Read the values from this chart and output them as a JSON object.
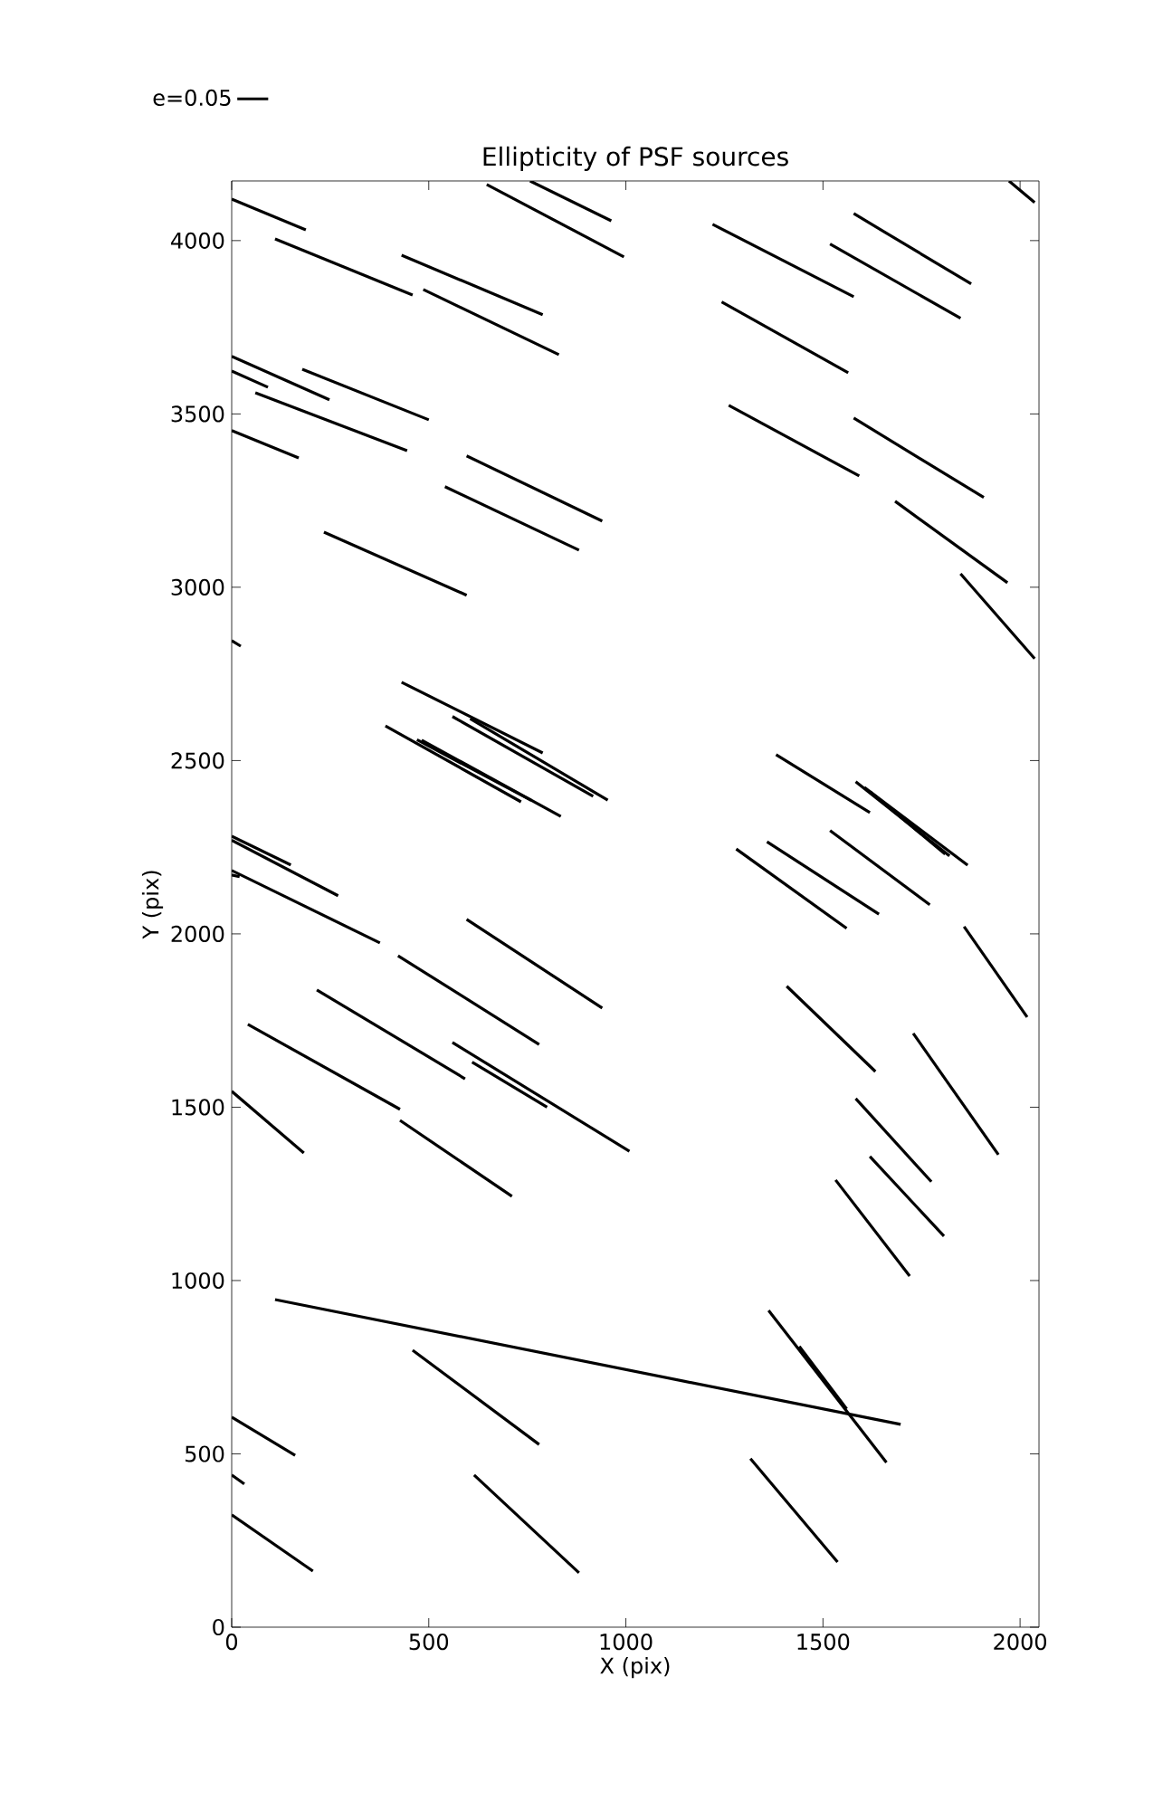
{
  "chart_data": {
    "type": "line",
    "title": "Ellipticity of PSF sources",
    "xlabel": "X (pix)",
    "ylabel": "Y (pix)",
    "xlim": [
      0,
      2048
    ],
    "ylim": [
      0,
      4172
    ],
    "xticks": [
      0,
      500,
      1000,
      1500,
      2000
    ],
    "yticks": [
      0,
      500,
      1000,
      1500,
      2000,
      2500,
      3000,
      3500,
      4000
    ],
    "legend": "top left",
    "marker": "none",
    "line_style": "solid",
    "series": [
      {
        "name": "e=0.05",
        "color": "#000000",
        "x": [
          0,
          188
        ],
        "values": [
          4120,
          4031
        ]
      },
      {
        "color": "#000000",
        "x": [
          110,
          459
        ],
        "values": [
          4005,
          3843
        ]
      },
      {
        "color": "#000000",
        "x": [
          431,
          789
        ],
        "values": [
          3958,
          3786
        ]
      },
      {
        "color": "#000000",
        "x": [
          486,
          830
        ],
        "values": [
          3859,
          3671
        ]
      },
      {
        "color": "#000000",
        "x": [
          647,
          995
        ],
        "values": [
          4162,
          3953
        ]
      },
      {
        "color": "#000000",
        "x": [
          757,
          963
        ],
        "values": [
          4172,
          4057
        ]
      },
      {
        "color": "#000000",
        "x": [
          1220,
          1578
        ],
        "values": [
          4047,
          3838
        ]
      },
      {
        "color": "#000000",
        "x": [
          1243,
          1564
        ],
        "values": [
          3823,
          3619
        ]
      },
      {
        "color": "#000000",
        "x": [
          1518,
          1849
        ],
        "values": [
          3990,
          3776
        ]
      },
      {
        "color": "#000000",
        "x": [
          1578,
          1876
        ],
        "values": [
          4078,
          3875
        ]
      },
      {
        "color": "#000000",
        "x": [
          1972,
          2037
        ],
        "values": [
          4172,
          4110
        ]
      },
      {
        "color": "#000000",
        "x": [
          0,
          248
        ],
        "values": [
          3666,
          3541
        ]
      },
      {
        "color": "#000000",
        "x": [
          0,
          92
        ],
        "values": [
          3624,
          3577
        ]
      },
      {
        "color": "#000000",
        "x": [
          60,
          445
        ],
        "values": [
          3561,
          3394
        ]
      },
      {
        "color": "#000000",
        "x": [
          179,
          500
        ],
        "values": [
          3629,
          3483
        ]
      },
      {
        "color": "#000000",
        "x": [
          0,
          170
        ],
        "values": [
          3452,
          3373
        ]
      },
      {
        "color": "#000000",
        "x": [
          596,
          940
        ],
        "values": [
          3379,
          3191
        ]
      },
      {
        "color": "#000000",
        "x": [
          541,
          881
        ],
        "values": [
          3290,
          3107
        ]
      },
      {
        "color": "#000000",
        "x": [
          1261,
          1592
        ],
        "values": [
          3525,
          3321
        ]
      },
      {
        "color": "#000000",
        "x": [
          1578,
          1908
        ],
        "values": [
          3488,
          3259
        ]
      },
      {
        "color": "#000000",
        "x": [
          1683,
          1968
        ],
        "values": [
          3248,
          3013
        ]
      },
      {
        "color": "#000000",
        "x": [
          1849,
          2037
        ],
        "values": [
          3039,
          2794
        ]
      },
      {
        "color": "#000000",
        "x": [
          234,
          596
        ],
        "values": [
          3159,
          2977
        ]
      },
      {
        "color": "#000000",
        "x": [
          0,
          23
        ],
        "values": [
          2846,
          2830
        ]
      },
      {
        "color": "#000000",
        "x": [
          431,
          789
        ],
        "values": [
          2726,
          2522
        ]
      },
      {
        "color": "#000000",
        "x": [
          560,
          917
        ],
        "values": [
          2627,
          2397
        ]
      },
      {
        "color": "#000000",
        "x": [
          605,
          954
        ],
        "values": [
          2621,
          2386
        ]
      },
      {
        "color": "#000000",
        "x": [
          390,
          734
        ],
        "values": [
          2600,
          2381
        ]
      },
      {
        "color": "#000000",
        "x": [
          482,
          835
        ],
        "values": [
          2559,
          2339
        ]
      },
      {
        "color": "#000000",
        "x": [
          470,
          760
        ],
        "values": [
          2560,
          2385
        ]
      },
      {
        "color": "#000000",
        "x": [
          0,
          150
        ],
        "values": [
          2282,
          2199
        ]
      },
      {
        "color": "#000000",
        "x": [
          0,
          270
        ],
        "values": [
          2270,
          2110
        ]
      },
      {
        "color": "#000000",
        "x": [
          0,
          376
        ],
        "values": [
          2183,
          1974
        ]
      },
      {
        "color": "#000000",
        "x": [
          0,
          20
        ],
        "values": [
          2170,
          2165
        ]
      },
      {
        "color": "#000000",
        "x": [
          596,
          940
        ],
        "values": [
          2042,
          1786
        ]
      },
      {
        "color": "#000000",
        "x": [
          422,
          780
        ],
        "values": [
          1937,
          1681
        ]
      },
      {
        "color": "#000000",
        "x": [
          216,
          592
        ],
        "values": [
          1838,
          1582
        ]
      },
      {
        "color": "#000000",
        "x": [
          41,
          427
        ],
        "values": [
          1739,
          1494
        ]
      },
      {
        "color": "#000000",
        "x": [
          560,
          1009
        ],
        "values": [
          1687,
          1373
        ]
      },
      {
        "color": "#000000",
        "x": [
          610,
          800
        ],
        "values": [
          1630,
          1500
        ]
      },
      {
        "color": "#000000",
        "x": [
          0,
          183
        ],
        "values": [
          1546,
          1368
        ]
      },
      {
        "color": "#000000",
        "x": [
          427,
          711
        ],
        "values": [
          1462,
          1243
        ]
      },
      {
        "color": "#000000",
        "x": [
          1381,
          1619
        ],
        "values": [
          2517,
          2350
        ]
      },
      {
        "color": "#000000",
        "x": [
          1583,
          1821
        ],
        "values": [
          2439,
          2225
        ]
      },
      {
        "color": "#000000",
        "x": [
          1605,
          1867
        ],
        "values": [
          2423,
          2198
        ]
      },
      {
        "color": "#000000",
        "x": [
          1620,
          1810
        ],
        "values": [
          2410,
          2230
        ]
      },
      {
        "color": "#000000",
        "x": [
          1280,
          1560
        ],
        "values": [
          2245,
          2016
        ]
      },
      {
        "color": "#000000",
        "x": [
          1358,
          1642
        ],
        "values": [
          2266,
          2057
        ]
      },
      {
        "color": "#000000",
        "x": [
          1518,
          1771
        ],
        "values": [
          2298,
          2084
        ]
      },
      {
        "color": "#000000",
        "x": [
          1858,
          2018
        ],
        "values": [
          2021,
          1760
        ]
      },
      {
        "color": "#000000",
        "x": [
          1408,
          1633
        ],
        "values": [
          1849,
          1603
        ]
      },
      {
        "color": "#000000",
        "x": [
          1729,
          1945
        ],
        "values": [
          1713,
          1363
        ]
      },
      {
        "color": "#000000",
        "x": [
          1583,
          1775
        ],
        "values": [
          1525,
          1285
        ]
      },
      {
        "color": "#000000",
        "x": [
          1619,
          1807
        ],
        "values": [
          1358,
          1128
        ]
      },
      {
        "color": "#000000",
        "x": [
          1532,
          1720
        ],
        "values": [
          1290,
          1013
        ]
      },
      {
        "color": "#000000",
        "x": [
          110,
          1697
        ],
        "values": [
          945,
          585
        ]
      },
      {
        "color": "#000000",
        "x": [
          459,
          780
        ],
        "values": [
          799,
          527
        ]
      },
      {
        "color": "#000000",
        "x": [
          0,
          161
        ],
        "values": [
          606,
          496
        ]
      },
      {
        "color": "#000000",
        "x": [
          0,
          32
        ],
        "values": [
          439,
          413
        ]
      },
      {
        "color": "#000000",
        "x": [
          0,
          206
        ],
        "values": [
          324,
          162
        ]
      },
      {
        "color": "#000000",
        "x": [
          615,
          881
        ],
        "values": [
          439,
          157
        ]
      },
      {
        "color": "#000000",
        "x": [
          1362,
          1661
        ],
        "values": [
          914,
          475
        ]
      },
      {
        "color": "#000000",
        "x": [
          1440,
          1560
        ],
        "values": [
          810,
          630
        ]
      },
      {
        "color": "#000000",
        "x": [
          1316,
          1537
        ],
        "values": [
          486,
          188
        ]
      }
    ]
  }
}
